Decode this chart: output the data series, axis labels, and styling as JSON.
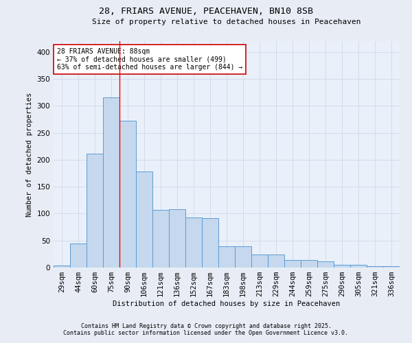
{
  "title1": "28, FRIARS AVENUE, PEACEHAVEN, BN10 8SB",
  "title2": "Size of property relative to detached houses in Peacehaven",
  "xlabel": "Distribution of detached houses by size in Peacehaven",
  "ylabel": "Number of detached properties",
  "bar_labels": [
    "29sqm",
    "44sqm",
    "60sqm",
    "75sqm",
    "90sqm",
    "106sqm",
    "121sqm",
    "136sqm",
    "152sqm",
    "167sqm",
    "183sqm",
    "198sqm",
    "213sqm",
    "229sqm",
    "244sqm",
    "259sqm",
    "275sqm",
    "290sqm",
    "305sqm",
    "321sqm",
    "336sqm"
  ],
  "bar_values": [
    4,
    44,
    211,
    315,
    272,
    178,
    107,
    108,
    93,
    92,
    39,
    40,
    24,
    24,
    14,
    14,
    11,
    5,
    5,
    3,
    3
  ],
  "bar_color": "#c5d8ed",
  "bar_edge_color": "#5b9bd5",
  "bg_color": "#eaf0f9",
  "grid_color": "#d0d8e8",
  "vline_x_index": 4,
  "vline_color": "#ff0000",
  "annotation_text": "28 FRIARS AVENUE: 88sqm\n← 37% of detached houses are smaller (499)\n63% of semi-detached houses are larger (844) →",
  "annotation_box_color": "#ffffff",
  "annotation_box_edge_color": "#cc0000",
  "footnote1": "Contains HM Land Registry data © Crown copyright and database right 2025.",
  "footnote2": "Contains public sector information licensed under the Open Government Licence v3.0.",
  "ylim": [
    0,
    420
  ],
  "fig_bg": "#e8edf5"
}
